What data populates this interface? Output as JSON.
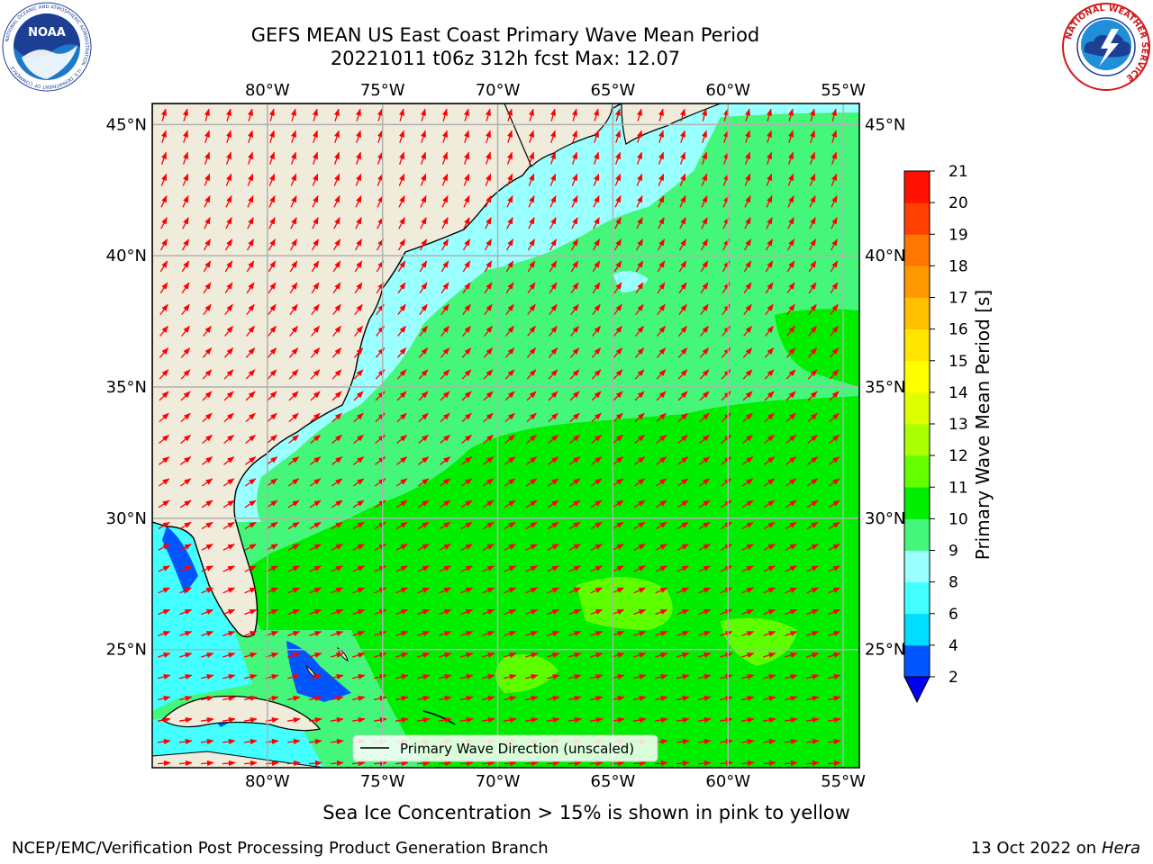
{
  "title": {
    "line1": "GEFS MEAN US East Coast Primary Wave Mean Period",
    "line2": "20221011 t06z 312h fcst   Max: 12.07"
  },
  "logos": {
    "noaa": {
      "text": "NOAA",
      "ring": "NATIONAL OCEANIC AND ATMOSPHERIC ADMINISTRATION · U.S. DEPARTMENT OF COMMERCE"
    },
    "nws": {
      "ring": "NATIONAL WEATHER SERVICE"
    }
  },
  "map": {
    "lon_labels": [
      "80°W",
      "75°W",
      "70°W",
      "65°W",
      "60°W",
      "55°W"
    ],
    "lat_labels": [
      "45°N",
      "40°N",
      "35°N",
      "30°N",
      "25°N"
    ],
    "lon_values": [
      -80,
      -75,
      -70,
      -65,
      -60,
      -55
    ],
    "lat_values": [
      45,
      40,
      35,
      30,
      25
    ],
    "extent": {
      "lon_min": -85,
      "lon_max": -54.3,
      "lat_min": 20.5,
      "lat_max": 45.8
    },
    "land_color": "#efecdc",
    "grid_color": "#b0b0b0",
    "arrow_color": "#ff0000",
    "legend_label": "Primary Wave Direction (unscaled)"
  },
  "colorbar": {
    "label": "Primary Wave Mean Period [s]",
    "ticks": [
      "2",
      "4",
      "6",
      "8",
      "9",
      "10",
      "11",
      "12",
      "13",
      "14",
      "15",
      "16",
      "17",
      "18",
      "19",
      "20",
      "21"
    ],
    "colors": [
      "#0055ff",
      "#00ddff",
      "#44ffff",
      "#99ffff",
      "#44f77a",
      "#00ee00",
      "#66ff00",
      "#aaff00",
      "#ddff00",
      "#ffff00",
      "#ffe600",
      "#ffc000",
      "#ff9900",
      "#ff7700",
      "#ff4000",
      "#ff1000"
    ],
    "under_color": "#0000ee"
  },
  "note": "Sea Ice Concentration > 15% is shown in pink to yellow",
  "footer": {
    "left": "NCEP/EMC/Verification Post Processing Product Generation Branch",
    "right_prefix": "13 Oct 2022 on ",
    "right_italic": "Hera"
  }
}
